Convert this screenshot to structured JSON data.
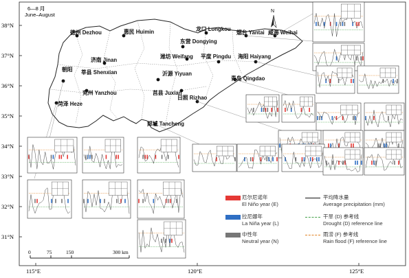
{
  "season": {
    "zh": "6—8 月",
    "en": "June–August"
  },
  "latitude_labels": [
    "38°N",
    "37°N",
    "36°N",
    "35°N",
    "34°N",
    "33°N",
    "32°N",
    "31°N"
  ],
  "longitude_labels": [
    "115°E",
    "120°E",
    "125°E"
  ],
  "cities": [
    {
      "name": "德州 Dezhou"
    },
    {
      "name": "惠民 Huimin"
    },
    {
      "name": "东营 Dongying"
    },
    {
      "name": "龙口 Longkou"
    },
    {
      "name": "烟台 Yantai"
    },
    {
      "name": "威海 Weihai"
    },
    {
      "name": "潍坊 Weifang"
    },
    {
      "name": "平度 Pingdu"
    },
    {
      "name": "海阳 Haiyang"
    },
    {
      "name": "济南 Jinan"
    },
    {
      "name": "莘县 Shenxian"
    },
    {
      "name": "沂源 Yiyuan"
    },
    {
      "name": "青岛 Qingdao"
    },
    {
      "name": "兖州 Yanzhou"
    },
    {
      "name": "莒县 Juxian"
    },
    {
      "name": "日照 Rizhao"
    },
    {
      "name": "菏泽 Heze"
    },
    {
      "name": "郯城 Tancheng"
    },
    {
      "name": "朝阳"
    }
  ],
  "north_arrow": "N",
  "scale_bar": {
    "ticks": [
      "0",
      "75",
      "150",
      "300 km"
    ]
  },
  "legend": [
    {
      "zh": "厄尔尼诺年",
      "en": "El Niño year (E)",
      "color": "#e53935"
    },
    {
      "zh": "拉尼娜年",
      "en": "La Niña year (L)",
      "color": "#2f6fc4"
    },
    {
      "zh": "中性年",
      "en": "Neutral year (N)",
      "color": "#777777"
    },
    {
      "zh": "平均降水量",
      "en": "Average precipitation (mm)",
      "color": "#111111"
    },
    {
      "zh": "干旱 (D) 参考线",
      "en": "Drought (D) reference line",
      "color": "#43a047"
    },
    {
      "zh": "雨涝 (F) 参考线",
      "en": "Rain flood (F) reference line",
      "color": "#e08020"
    }
  ],
  "colors": {
    "land": "#ffffff",
    "sea": "#ffffff",
    "coast": "#222222"
  }
}
